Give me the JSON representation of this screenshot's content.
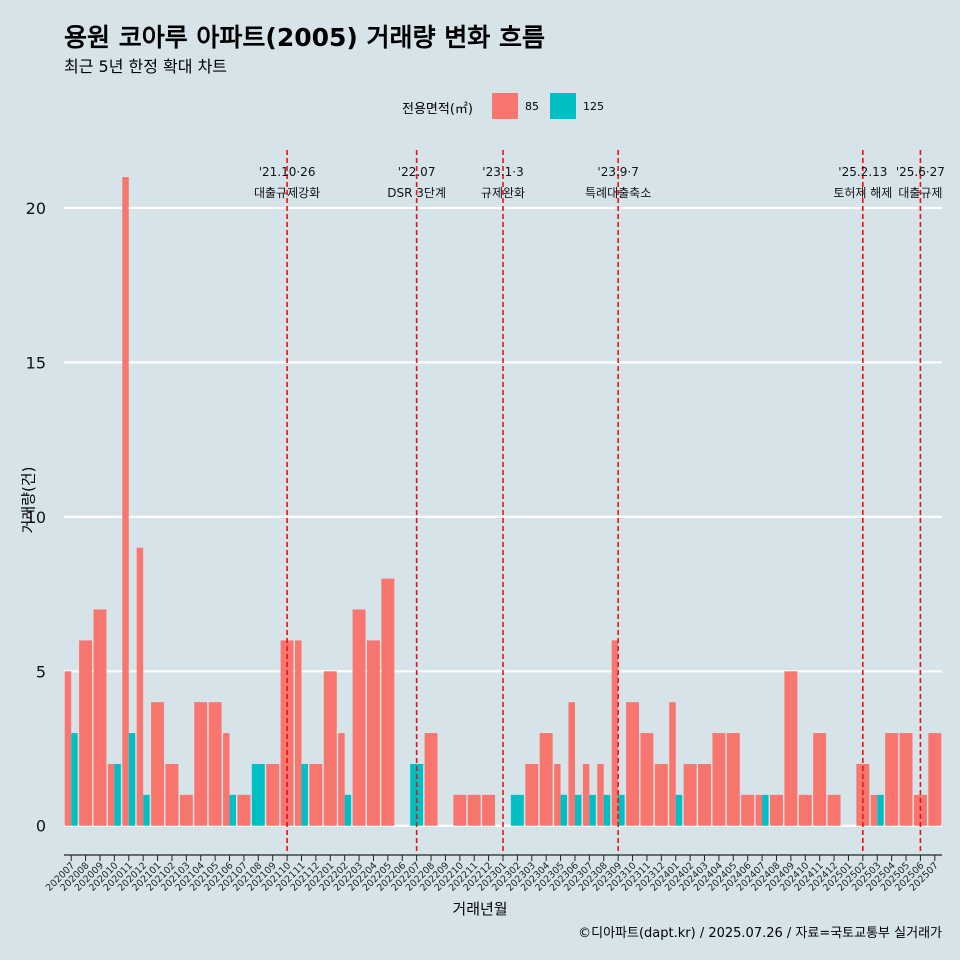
{
  "header": {
    "title": "용원 코아루 아파트(2005) 거래량 변화 흐름",
    "subtitle": "최근 5년 한정 확대 차트"
  },
  "caption": "©디아파트(dapt.kr) / 2025.07.26 / 자료=국토교통부 실거래가",
  "colors": {
    "background": "#d6e4ea",
    "s85": "#f8766d",
    "s125": "#00bfc4",
    "event_line": "#ee1111",
    "grid": "#ffffff"
  },
  "chart_data": {
    "type": "bar",
    "xlabel": "거래년월",
    "ylabel": "거래량(건)",
    "ylim": [
      -0.85,
      22.2
    ],
    "yticks": [
      0,
      5,
      10,
      15,
      20
    ],
    "legend": {
      "title": "전용면적(㎡)",
      "position": "top"
    },
    "grid": true,
    "categories": [
      "202007",
      "202008",
      "202009",
      "202010",
      "202011",
      "202012",
      "202101",
      "202102",
      "202103",
      "202104",
      "202105",
      "202106",
      "202107",
      "202108",
      "202109",
      "202110",
      "202111",
      "202112",
      "202201",
      "202202",
      "202203",
      "202204",
      "202205",
      "202206",
      "202207",
      "202208",
      "202209",
      "202210",
      "202211",
      "202212",
      "202301",
      "202302",
      "202303",
      "202304",
      "202305",
      "202306",
      "202307",
      "202308",
      "202309",
      "202310",
      "202311",
      "202312",
      "202401",
      "202402",
      "202403",
      "202404",
      "202405",
      "202406",
      "202407",
      "202408",
      "202409",
      "202410",
      "202411",
      "202412",
      "202501",
      "202502",
      "202503",
      "202504",
      "202505",
      "202506",
      "202507"
    ],
    "series": [
      {
        "name": "85",
        "color": "#f8766d",
        "values": [
          5,
          6,
          7,
          2,
          21,
          9,
          4,
          2,
          1,
          4,
          4,
          3,
          1,
          0,
          2,
          6,
          6,
          2,
          5,
          3,
          7,
          6,
          8,
          0,
          0,
          3,
          0,
          1,
          1,
          1,
          0,
          0,
          2,
          3,
          2,
          4,
          2,
          2,
          6,
          4,
          3,
          2,
          4,
          2,
          2,
          3,
          3,
          1,
          1,
          1,
          5,
          1,
          3,
          1,
          0,
          2,
          1,
          3,
          3,
          1,
          3
        ]
      },
      {
        "name": "125",
        "color": "#00bfc4",
        "values": [
          3,
          0,
          0,
          2,
          3,
          1,
          0,
          0,
          0,
          0,
          0,
          1,
          0,
          2,
          0,
          0,
          2,
          0,
          0,
          1,
          0,
          0,
          0,
          0,
          2,
          0,
          0,
          0,
          0,
          0,
          0,
          1,
          0,
          0,
          1,
          1,
          1,
          1,
          1,
          0,
          0,
          0,
          1,
          0,
          0,
          0,
          0,
          0,
          1,
          0,
          0,
          0,
          0,
          0,
          0,
          0,
          1,
          0,
          0,
          0,
          0
        ]
      }
    ],
    "annotations": [
      {
        "x": "202110",
        "date": "'21.10·26",
        "label": "대출규제강화"
      },
      {
        "x": "202207",
        "date": "'22.07",
        "label": "DSR 3단계"
      },
      {
        "x": "202301",
        "date": "'23.1·3",
        "label": "규제완화"
      },
      {
        "x": "202309",
        "date": "'23.9·7",
        "label": "특례대출축소"
      },
      {
        "x": "202502",
        "date": "'25.2.13",
        "label": "토허제 해제"
      },
      {
        "x": "202506",
        "date": "'25.6·27",
        "label": "대출규제"
      }
    ]
  }
}
